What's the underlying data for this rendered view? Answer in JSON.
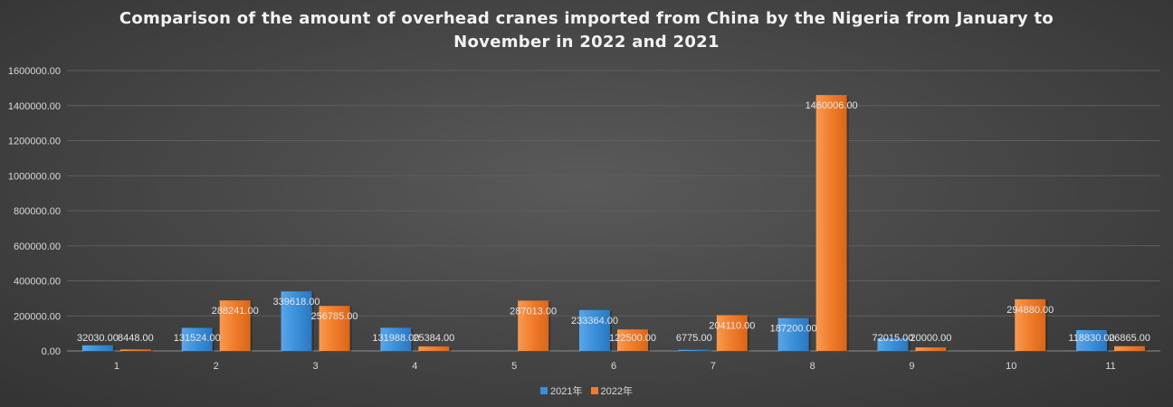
{
  "chart_data": {
    "type": "bar",
    "title": "Comparison of the amount of overhead cranes imported from China by the Nigeria from January to November in 2022 and 2021",
    "xlabel": "",
    "ylabel": "",
    "categories": [
      "1",
      "2",
      "3",
      "4",
      "5",
      "6",
      "7",
      "8",
      "9",
      "10",
      "11"
    ],
    "ylim": [
      0,
      1600000
    ],
    "yticks": [
      "0.00",
      "200000.00",
      "400000.00",
      "600000.00",
      "800000.00",
      "1000000.00",
      "1200000.00",
      "1400000.00",
      "1600000.00"
    ],
    "grid": true,
    "legend_position": "bottom",
    "series": [
      {
        "name": "2021年",
        "color": "#3a8fd9",
        "values": [
          32030,
          131524,
          339618,
          131988,
          null,
          233364,
          6775,
          187200,
          72015,
          null,
          118830
        ],
        "labels": [
          "32030.00",
          "131524.00",
          "339618.00",
          "131988.00",
          "",
          "233364.00",
          "6775.00",
          "187200.00",
          "72015.00",
          "",
          "118830.00"
        ]
      },
      {
        "name": "2022年",
        "color": "#f07b2a",
        "values": [
          8448,
          288241,
          256785,
          25384,
          287013,
          122500,
          204110,
          1460006,
          20000,
          294880,
          26865
        ],
        "labels": [
          "8448.00",
          "288241.00",
          "256785.00",
          "25384.00",
          "287013.00",
          "122500.00",
          "204110.00",
          "1460006.00",
          "20000.00",
          "294880.00",
          "26865.00"
        ]
      }
    ]
  }
}
